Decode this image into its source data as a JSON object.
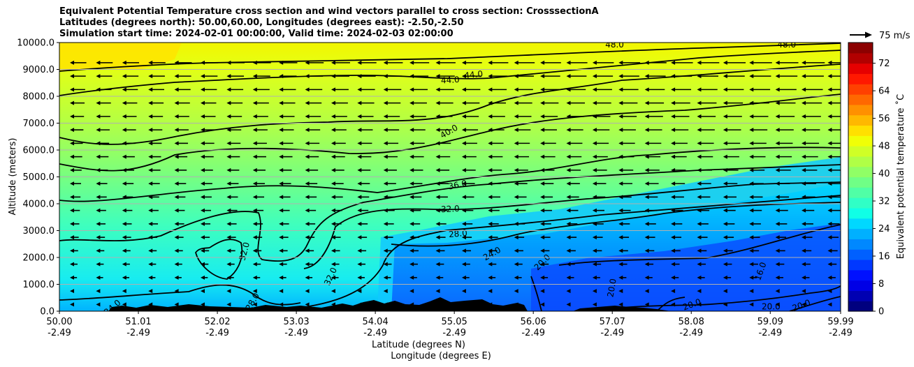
{
  "title_lines": [
    "Equivalent Potential Temperature cross section and wind vectors parallel to cross section: CrosssectionA",
    "Latitudes (degrees north): 50.00,60.00, Longitudes (degrees east): -2.50,-2.50",
    "Simulation start time: 2024-02-01 00:00:00, Valid time: 2024-02-03 02:00:00"
  ],
  "chart_data": {
    "type": "heatmap",
    "subtype": "filled contour cross section with contour lines, wind vectors and terrain",
    "ylabel": "Altitude (meters)",
    "xlabel_lines": [
      "Latitude (degrees N)",
      "Longitude (degrees E)"
    ],
    "ylim": [
      0,
      10000
    ],
    "xlim": [
      50.0,
      59.99
    ],
    "y_ticks": [
      "0.0",
      "1000.0",
      "2000.0",
      "3000.0",
      "4000.0",
      "5000.0",
      "6000.0",
      "7000.0",
      "8000.0",
      "9000.0",
      "10000.0"
    ],
    "x_ticks": [
      {
        "lat": "50.00",
        "lon": "-2.49"
      },
      {
        "lat": "51.01",
        "lon": "-2.49"
      },
      {
        "lat": "52.02",
        "lon": "-2.49"
      },
      {
        "lat": "53.03",
        "lon": "-2.49"
      },
      {
        "lat": "54.04",
        "lon": "-2.49"
      },
      {
        "lat": "55.05",
        "lon": "-2.49"
      },
      {
        "lat": "56.06",
        "lon": "-2.49"
      },
      {
        "lat": "57.07",
        "lon": "-2.49"
      },
      {
        "lat": "58.08",
        "lon": "-2.49"
      },
      {
        "lat": "59.09",
        "lon": "-2.49"
      },
      {
        "lat": "59.99",
        "lon": "-2.49"
      }
    ],
    "grid": "horizontal",
    "colorbar": {
      "label": "Equivalent potential temperature $^\\circ$C",
      "label_display": "Equivalent potential temperature ˚C",
      "range": [
        0,
        78
      ],
      "tick_labels": [
        "0",
        "8",
        "16",
        "24",
        "32",
        "40",
        "48",
        "56",
        "64",
        "72"
      ]
    },
    "quiver_key": "75 m/s",
    "contour_levels": [
      12,
      16,
      20,
      24,
      28,
      32,
      36,
      40,
      44,
      48
    ],
    "contour_labels": [
      {
        "text": "48.0",
        "lat": 57.1,
        "alt": 9820,
        "rot": 0
      },
      {
        "text": "48.0",
        "lat": 59.3,
        "alt": 9820,
        "rot": 0
      },
      {
        "text": "44.0",
        "lat": 55.0,
        "alt": 8500,
        "rot": -4
      },
      {
        "text": "44.0",
        "lat": 55.3,
        "alt": 8700,
        "rot": -6
      },
      {
        "text": "40.0",
        "lat": 55.0,
        "alt": 6600,
        "rot": -30
      },
      {
        "text": "36.0",
        "lat": 55.1,
        "alt": 4600,
        "rot": -12
      },
      {
        "text": "32.0",
        "lat": 55.0,
        "alt": 3700,
        "rot": -3
      },
      {
        "text": "28.0",
        "lat": 55.1,
        "alt": 2780,
        "rot": -5
      },
      {
        "text": "24.0",
        "lat": 55.55,
        "alt": 2050,
        "rot": -30
      },
      {
        "text": "20.0",
        "lat": 56.2,
        "alt": 1750,
        "rot": -45
      },
      {
        "text": "32.0",
        "lat": 52.4,
        "alt": 2200,
        "rot": -75
      },
      {
        "text": "32.0",
        "lat": 53.5,
        "alt": 1250,
        "rot": -65
      },
      {
        "text": "20.0",
        "lat": 57.1,
        "alt": 850,
        "rot": -80
      },
      {
        "text": "16.0",
        "lat": 59.0,
        "alt": 1450,
        "rot": -70
      },
      {
        "text": "20.0",
        "lat": 58.1,
        "alt": 150,
        "rot": -20
      },
      {
        "text": "20.0",
        "lat": 59.1,
        "alt": 60,
        "rot": 0
      },
      {
        "text": "20.0",
        "lat": 59.5,
        "alt": 120,
        "rot": -20
      },
      {
        "text": "24.0",
        "lat": 50.7,
        "alt": 60,
        "rot": -40
      },
      {
        "text": "28.0",
        "lat": 52.5,
        "alt": 300,
        "rot": -60
      }
    ],
    "wind": {
      "direction": "toward decreasing latitude (southward)",
      "typical_speed_ms": 30
    }
  }
}
